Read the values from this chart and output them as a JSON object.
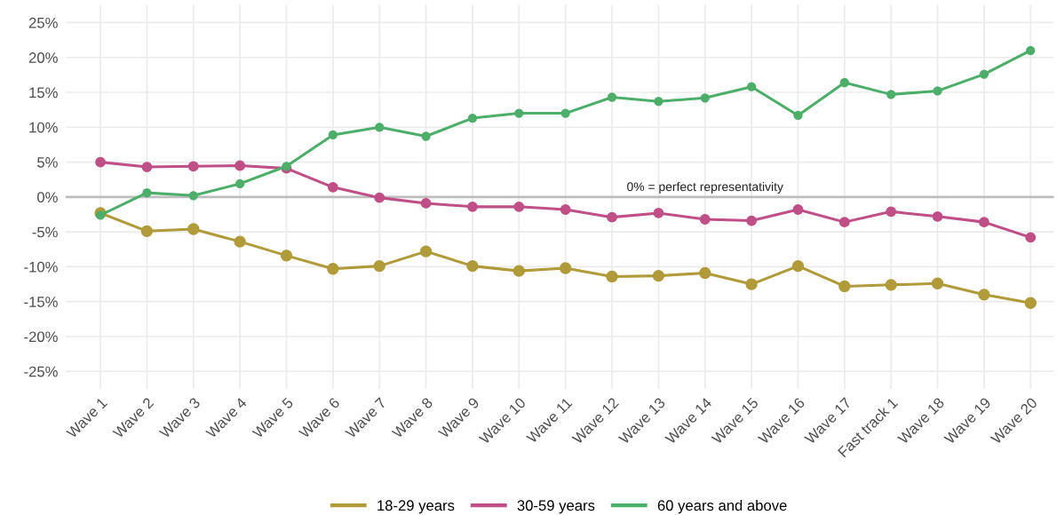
{
  "chart_data": {
    "type": "line",
    "categories": [
      "Wave 1",
      "Wave 2",
      "Wave 3",
      "Wave 4",
      "Wave 5",
      "Wave 6",
      "Wave 7",
      "Wave 8",
      "Wave 9",
      "Wave 10",
      "Wave 11",
      "Wave 12",
      "Wave 13",
      "Wave 14",
      "Wave 15",
      "Wave 16",
      "Wave 17",
      "Fast track 1",
      "Wave 18",
      "Wave 19",
      "Wave 20"
    ],
    "series": [
      {
        "name": "18-29 years",
        "color": "#b09a3a",
        "values": [
          -2.3,
          -4.9,
          -4.6,
          -6.4,
          -8.4,
          -10.3,
          -9.9,
          -7.8,
          -9.9,
          -10.6,
          -10.2,
          -11.4,
          -11.3,
          -10.9,
          -12.5,
          -9.9,
          -12.8,
          -12.6,
          -12.4,
          -14.0,
          -15.2
        ]
      },
      {
        "name": "30-59 years",
        "color": "#bf4f86",
        "values": [
          5.0,
          4.3,
          4.4,
          4.5,
          4.1,
          1.4,
          -0.1,
          -0.9,
          -1.4,
          -1.4,
          -1.8,
          -2.9,
          -2.3,
          -3.2,
          -3.4,
          -1.8,
          -3.6,
          -2.1,
          -2.8,
          -3.6,
          -5.8
        ]
      },
      {
        "name": "60 years and above",
        "color": "#4dae6a",
        "values": [
          -2.6,
          0.6,
          0.2,
          1.9,
          4.4,
          8.9,
          10.0,
          8.7,
          11.3,
          12.0,
          12.0,
          14.3,
          13.7,
          14.2,
          15.8,
          11.7,
          16.4,
          14.7,
          15.2,
          17.6,
          21.0
        ]
      }
    ],
    "ylim": [
      -27.5,
      27.5
    ],
    "yticks": [
      {
        "value": -25,
        "label": "-25%"
      },
      {
        "value": -20,
        "label": "-20%"
      },
      {
        "value": -15,
        "label": "-15%"
      },
      {
        "value": -10,
        "label": "-10%"
      },
      {
        "value": -5,
        "label": "-5%"
      },
      {
        "value": 0,
        "label": "0%"
      },
      {
        "value": 5,
        "label": "5%"
      },
      {
        "value": 10,
        "label": "10%"
      },
      {
        "value": 15,
        "label": "15%"
      },
      {
        "value": 20,
        "label": "20%"
      },
      {
        "value": 25,
        "label": "25%"
      }
    ],
    "ref_lines": [
      {
        "axis": "y",
        "value": 0,
        "label": "0% = perfect representativity",
        "color": "#bdbdbd"
      }
    ],
    "grid": true,
    "legend": "bottom",
    "marker": "circle",
    "line_style": "solid"
  }
}
